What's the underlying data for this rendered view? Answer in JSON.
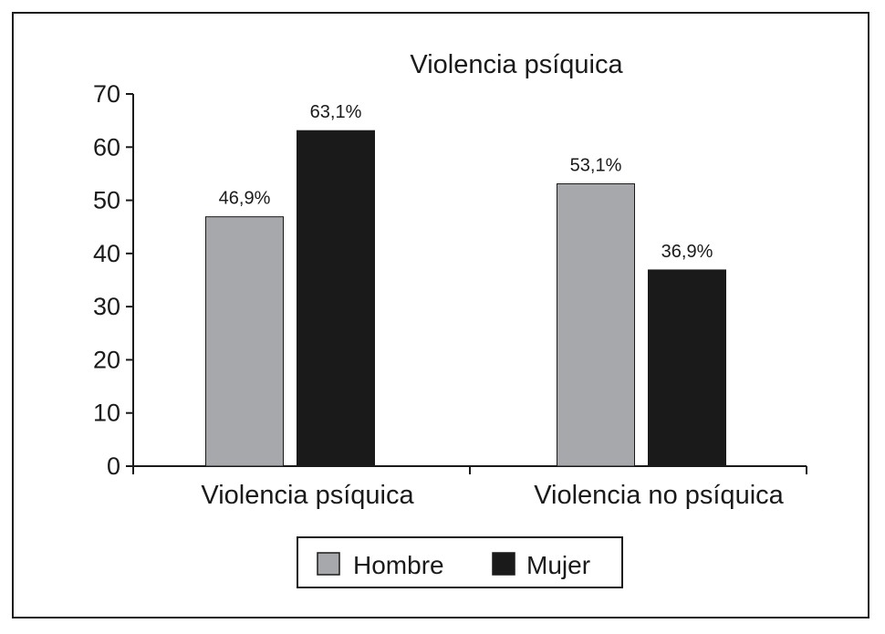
{
  "chart_data": {
    "type": "bar",
    "title": "Violencia psíquica",
    "categories": [
      "Violencia psíquica",
      "Violencia no psíquica"
    ],
    "series": [
      {
        "name": "Hombre",
        "values": [
          46.9,
          53.1
        ],
        "labels": [
          "46,9%",
          "53,1%"
        ],
        "color": "#a7a8ab"
      },
      {
        "name": "Mujer",
        "values": [
          63.1,
          36.9
        ],
        "labels": [
          "63,1%",
          "36,9%"
        ],
        "color": "#1b1a1a"
      }
    ],
    "ylim": [
      0,
      70
    ],
    "yticks": [
      0,
      10,
      20,
      30,
      40,
      50,
      60,
      70
    ],
    "xlabel": "",
    "ylabel": "",
    "grid": false,
    "legend": "bottom"
  }
}
